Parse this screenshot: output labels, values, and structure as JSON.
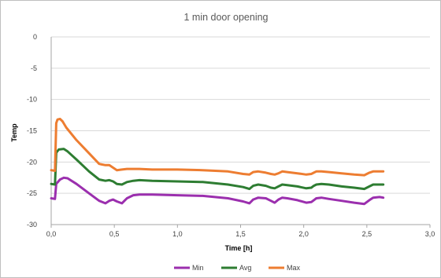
{
  "chart_data": {
    "type": "line",
    "title": "1 min door opening",
    "xlabel": "Time [h]",
    "ylabel": "Temp",
    "xlim": [
      0,
      3
    ],
    "ylim": [
      -30,
      0
    ],
    "xticks": [
      0,
      0.5,
      1,
      1.5,
      2,
      2.5,
      3
    ],
    "xtick_labels": [
      "0,0",
      "0,5",
      "1,0",
      "1,5",
      "2,0",
      "2,5",
      "3,0"
    ],
    "yticks": [
      0,
      -5,
      -10,
      -15,
      -20,
      -25,
      -30
    ],
    "ytick_labels": [
      "0",
      "-5",
      "-10",
      "-15",
      "-20",
      "-25",
      "-30"
    ],
    "grid": "horizontal",
    "legend_position": "bottom",
    "series": [
      {
        "name": "Min",
        "color": "#9b2fae",
        "x": [
          0.0,
          0.03,
          0.04,
          0.07,
          0.1,
          0.13,
          0.2,
          0.3,
          0.38,
          0.43,
          0.46,
          0.49,
          0.52,
          0.56,
          0.6,
          0.65,
          0.7,
          0.8,
          1.0,
          1.2,
          1.4,
          1.52,
          1.57,
          1.6,
          1.64,
          1.7,
          1.74,
          1.77,
          1.8,
          1.83,
          1.87,
          1.95,
          2.02,
          2.06,
          2.08,
          2.1,
          2.14,
          2.2,
          2.3,
          2.4,
          2.48,
          2.52,
          2.55,
          2.6,
          2.63
        ],
        "y": [
          -25.8,
          -25.9,
          -23.5,
          -22.8,
          -22.5,
          -22.6,
          -23.5,
          -25.0,
          -26.2,
          -26.6,
          -26.2,
          -26.0,
          -26.3,
          -26.6,
          -25.8,
          -25.3,
          -25.2,
          -25.2,
          -25.3,
          -25.4,
          -25.8,
          -26.3,
          -26.6,
          -26.0,
          -25.7,
          -25.8,
          -26.2,
          -26.5,
          -26.0,
          -25.7,
          -25.8,
          -26.1,
          -26.5,
          -26.4,
          -26.1,
          -25.8,
          -25.7,
          -25.9,
          -26.2,
          -26.5,
          -26.7,
          -26.1,
          -25.7,
          -25.6,
          -25.7
        ]
      },
      {
        "name": "Avg",
        "color": "#2e7d32",
        "x": [
          0.0,
          0.03,
          0.04,
          0.06,
          0.1,
          0.13,
          0.2,
          0.3,
          0.38,
          0.43,
          0.46,
          0.49,
          0.52,
          0.56,
          0.6,
          0.65,
          0.7,
          0.8,
          1.0,
          1.2,
          1.4,
          1.52,
          1.57,
          1.6,
          1.64,
          1.7,
          1.74,
          1.77,
          1.8,
          1.83,
          1.87,
          1.95,
          2.02,
          2.06,
          2.08,
          2.1,
          2.14,
          2.2,
          2.3,
          2.4,
          2.48,
          2.52,
          2.55,
          2.6,
          2.63
        ],
        "y": [
          -23.5,
          -23.6,
          -18.5,
          -18.0,
          -17.9,
          -18.3,
          -19.6,
          -21.5,
          -22.8,
          -23.0,
          -22.9,
          -23.1,
          -23.5,
          -23.6,
          -23.2,
          -23.0,
          -22.9,
          -23.0,
          -23.1,
          -23.2,
          -23.6,
          -24.0,
          -24.3,
          -23.8,
          -23.6,
          -23.8,
          -24.1,
          -24.2,
          -23.9,
          -23.6,
          -23.7,
          -23.9,
          -24.2,
          -24.1,
          -23.8,
          -23.6,
          -23.5,
          -23.6,
          -23.9,
          -24.1,
          -24.3,
          -23.9,
          -23.6,
          -23.6,
          -23.6
        ]
      },
      {
        "name": "Max",
        "color": "#ed7d31",
        "x": [
          0.0,
          0.03,
          0.04,
          0.05,
          0.07,
          0.09,
          0.12,
          0.2,
          0.3,
          0.38,
          0.43,
          0.46,
          0.49,
          0.52,
          0.56,
          0.6,
          0.65,
          0.7,
          0.8,
          1.0,
          1.2,
          1.4,
          1.52,
          1.57,
          1.6,
          1.64,
          1.7,
          1.74,
          1.77,
          1.8,
          1.83,
          1.87,
          1.95,
          2.02,
          2.06,
          2.08,
          2.1,
          2.14,
          2.2,
          2.3,
          2.4,
          2.48,
          2.52,
          2.55,
          2.6,
          2.63
        ],
        "y": [
          -21.3,
          -21.4,
          -13.8,
          -13.2,
          -13.1,
          -13.5,
          -14.5,
          -16.5,
          -18.6,
          -20.3,
          -20.5,
          -20.5,
          -20.9,
          -21.3,
          -21.2,
          -21.1,
          -21.1,
          -21.1,
          -21.2,
          -21.2,
          -21.3,
          -21.5,
          -21.9,
          -22.0,
          -21.6,
          -21.5,
          -21.7,
          -21.9,
          -22.0,
          -21.8,
          -21.5,
          -21.6,
          -21.8,
          -22.0,
          -21.9,
          -21.7,
          -21.5,
          -21.5,
          -21.6,
          -21.8,
          -22.0,
          -22.1,
          -21.7,
          -21.5,
          -21.5,
          -21.5
        ]
      }
    ]
  }
}
